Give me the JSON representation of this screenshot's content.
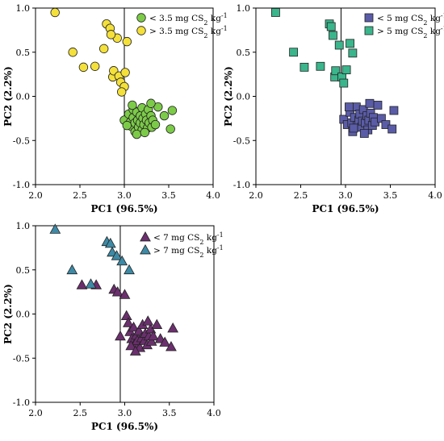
{
  "chart_data": [
    {
      "type": "scatter",
      "xlabel": "PC1 (96.5%)",
      "ylabel": "PC2 (2.2%)",
      "xlim": [
        2.0,
        4.0
      ],
      "ylim": [
        -1.0,
        1.0
      ],
      "xticks": [
        "2.0",
        "2.5",
        "3.0",
        "3.5",
        "4.0"
      ],
      "yticks": [
        "1.0",
        "0.5",
        "0.0",
        "-0.5",
        "-1.0"
      ],
      "reference_line_x": 3.0,
      "legend_position": "top-right",
      "grid": false,
      "series": [
        {
          "name": "< 3.5 mg CS₂ kg⁻¹",
          "marker": "circle",
          "color": "#7ccb48",
          "points": [
            [
              3.0,
              -0.27
            ],
            [
              3.05,
              -0.2
            ],
            [
              3.07,
              -0.29
            ],
            [
              3.08,
              -0.34
            ],
            [
              3.1,
              -0.24
            ],
            [
              3.1,
              -0.15
            ],
            [
              3.12,
              -0.3
            ],
            [
              3.12,
              -0.4
            ],
            [
              3.14,
              -0.18
            ],
            [
              3.15,
              -0.27
            ],
            [
              3.16,
              -0.35
            ],
            [
              3.18,
              -0.22
            ],
            [
              3.18,
              -0.3
            ],
            [
              3.2,
              -0.38
            ],
            [
              3.2,
              -0.13
            ],
            [
              3.21,
              -0.25
            ],
            [
              3.22,
              -0.32
            ],
            [
              3.24,
              -0.2
            ],
            [
              3.25,
              -0.27
            ],
            [
              3.26,
              -0.36
            ],
            [
              3.27,
              -0.15
            ],
            [
              3.28,
              -0.3
            ],
            [
              3.3,
              -0.22
            ],
            [
              3.31,
              -0.35
            ],
            [
              3.32,
              -0.27
            ],
            [
              3.35,
              -0.32
            ],
            [
              3.38,
              -0.12
            ],
            [
              3.45,
              -0.22
            ],
            [
              3.52,
              -0.37
            ],
            [
              3.54,
              -0.16
            ],
            [
              3.03,
              -0.33
            ],
            [
              3.09,
              -0.1
            ],
            [
              3.14,
              -0.43
            ],
            [
              3.23,
              -0.41
            ],
            [
              3.3,
              -0.08
            ]
          ]
        },
        {
          "name": "> 3.5 mg CS₂ kg⁻¹",
          "marker": "circle",
          "color": "#f4e03a",
          "points": [
            [
              2.22,
              0.95
            ],
            [
              2.42,
              0.5
            ],
            [
              2.54,
              0.33
            ],
            [
              2.67,
              0.34
            ],
            [
              2.77,
              0.54
            ],
            [
              2.8,
              0.82
            ],
            [
              2.84,
              0.77
            ],
            [
              2.87,
              0.22
            ],
            [
              2.88,
              0.29
            ],
            [
              2.92,
              0.66
            ],
            [
              2.94,
              0.23
            ],
            [
              2.96,
              0.16
            ],
            [
              3.0,
              0.11
            ],
            [
              3.01,
              0.27
            ],
            [
              3.03,
              0.62
            ],
            [
              2.97,
              0.05
            ],
            [
              2.85,
              0.7
            ]
          ]
        }
      ]
    },
    {
      "type": "scatter",
      "xlabel": "PC1 (96.5%)",
      "ylabel": "PC2 (2.2%)",
      "xlim": [
        2.0,
        4.0
      ],
      "ylim": [
        -1.0,
        1.0
      ],
      "xticks": [
        "2.0",
        "2.5",
        "3.0",
        "3.5",
        "4.0"
      ],
      "yticks": [
        "1.0",
        "0.5",
        "0.0",
        "-0.5",
        "-1.0"
      ],
      "reference_line_x": 2.95,
      "legend_position": "top-right",
      "grid": false,
      "series": [
        {
          "name": "< 5 mg CS₂ kg⁻¹",
          "marker": "square",
          "color": "#5a5ca8",
          "points": [
            [
              2.98,
              -0.26
            ],
            [
              3.02,
              -0.32
            ],
            [
              3.05,
              -0.18
            ],
            [
              3.07,
              -0.3
            ],
            [
              3.08,
              -0.4
            ],
            [
              3.1,
              -0.24
            ],
            [
              3.12,
              -0.12
            ],
            [
              3.13,
              -0.33
            ],
            [
              3.15,
              -0.27
            ],
            [
              3.16,
              -0.2
            ],
            [
              3.18,
              -0.35
            ],
            [
              3.19,
              -0.28
            ],
            [
              3.2,
              -0.15
            ],
            [
              3.22,
              -0.3
            ],
            [
              3.24,
              -0.22
            ],
            [
              3.25,
              -0.38
            ],
            [
              3.26,
              -0.27
            ],
            [
              3.28,
              -0.19
            ],
            [
              3.3,
              -0.33
            ],
            [
              3.31,
              -0.24
            ],
            [
              3.33,
              -0.29
            ],
            [
              3.36,
              -0.1
            ],
            [
              3.4,
              -0.25
            ],
            [
              3.45,
              -0.32
            ],
            [
              3.52,
              -0.37
            ],
            [
              3.54,
              -0.16
            ],
            [
              3.04,
              -0.12
            ],
            [
              3.09,
              -0.36
            ],
            [
              3.21,
              -0.42
            ],
            [
              3.27,
              -0.08
            ]
          ]
        },
        {
          "name": "> 5 mg CS₂ kg⁻¹",
          "marker": "square",
          "color": "#3ab58c",
          "points": [
            [
              2.22,
              0.95
            ],
            [
              2.42,
              0.5
            ],
            [
              2.54,
              0.33
            ],
            [
              2.72,
              0.34
            ],
            [
              2.82,
              0.82
            ],
            [
              2.84,
              0.79
            ],
            [
              2.86,
              0.69
            ],
            [
              2.88,
              0.22
            ],
            [
              2.89,
              0.29
            ],
            [
              2.93,
              0.58
            ],
            [
              2.96,
              0.22
            ],
            [
              3.01,
              0.3
            ],
            [
              3.05,
              0.6
            ],
            [
              3.08,
              0.49
            ],
            [
              2.98,
              0.15
            ]
          ]
        }
      ]
    },
    {
      "type": "scatter",
      "xlabel": "PC1 (96.5%)",
      "ylabel": "PC2 (2.2%)",
      "xlim": [
        2.0,
        4.0
      ],
      "ylim": [
        -1.0,
        1.0
      ],
      "xticks": [
        "2.0",
        "2.5",
        "3.0",
        "3.5",
        "4.0"
      ],
      "yticks": [
        "1.0",
        "0.5",
        "0.0",
        "-0.5",
        "-1.0"
      ],
      "reference_line_x": 2.95,
      "legend_position": "top-right",
      "grid": false,
      "series": [
        {
          "name": "< 7 mg CS₂ kg⁻¹",
          "marker": "triangle",
          "color": "#6b2f6e",
          "points": [
            [
              2.52,
              0.33
            ],
            [
              2.68,
              0.33
            ],
            [
              2.88,
              0.28
            ],
            [
              2.92,
              0.25
            ],
            [
              3.0,
              0.22
            ],
            [
              3.02,
              -0.02
            ],
            [
              3.04,
              -0.1
            ],
            [
              3.06,
              -0.2
            ],
            [
              3.08,
              -0.28
            ],
            [
              3.1,
              -0.15
            ],
            [
              3.11,
              -0.34
            ],
            [
              3.13,
              -0.24
            ],
            [
              3.14,
              -0.3
            ],
            [
              3.16,
              -0.19
            ],
            [
              3.17,
              -0.38
            ],
            [
              3.19,
              -0.27
            ],
            [
              3.2,
              -0.12
            ],
            [
              3.22,
              -0.3
            ],
            [
              3.23,
              -0.22
            ],
            [
              3.25,
              -0.35
            ],
            [
              3.27,
              -0.25
            ],
            [
              3.29,
              -0.17
            ],
            [
              3.3,
              -0.31
            ],
            [
              3.32,
              -0.25
            ],
            [
              3.36,
              -0.12
            ],
            [
              3.4,
              -0.28
            ],
            [
              3.45,
              -0.32
            ],
            [
              3.52,
              -0.37
            ],
            [
              3.54,
              -0.16
            ],
            [
              3.07,
              -0.36
            ],
            [
              3.12,
              -0.42
            ],
            [
              3.26,
              -0.08
            ],
            [
              2.95,
              -0.25
            ]
          ]
        },
        {
          "name": "> 7 mg CS₂ kg⁻¹",
          "marker": "triangle",
          "color": "#3d8aa6",
          "points": [
            [
              2.22,
              0.96
            ],
            [
              2.41,
              0.5
            ],
            [
              2.62,
              0.34
            ],
            [
              2.8,
              0.82
            ],
            [
              2.84,
              0.8
            ],
            [
              2.86,
              0.7
            ],
            [
              2.91,
              0.66
            ],
            [
              2.97,
              0.6
            ],
            [
              3.05,
              0.5
            ]
          ]
        }
      ]
    }
  ]
}
